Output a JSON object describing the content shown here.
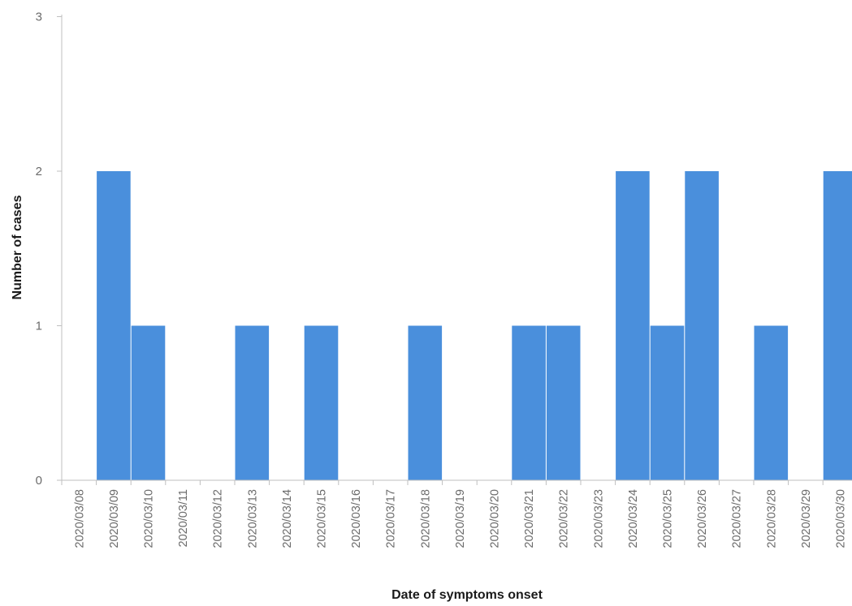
{
  "chart_data": {
    "type": "bar",
    "title": "",
    "xlabel": "Date of symptoms onset",
    "ylabel": "Number of cases",
    "ylim": [
      0,
      3
    ],
    "yticks": [
      0,
      1,
      2,
      3
    ],
    "grid": false,
    "legend": "none",
    "bar_color": "#4a8fdc",
    "categories": [
      "2020/03/08",
      "2020/03/09",
      "2020/03/10",
      "2020/03/11",
      "2020/03/12",
      "2020/03/13",
      "2020/03/14",
      "2020/03/15",
      "2020/03/16",
      "2020/03/17",
      "2020/03/18",
      "2020/03/19",
      "2020/03/20",
      "2020/03/21",
      "2020/03/22",
      "2020/03/23",
      "2020/03/24",
      "2020/03/25",
      "2020/03/26",
      "2020/03/27",
      "2020/03/28",
      "2020/03/29",
      "2020/03/30"
    ],
    "values": [
      0,
      2,
      1,
      0,
      0,
      1,
      0,
      1,
      0,
      0,
      1,
      0,
      0,
      1,
      1,
      0,
      2,
      1,
      2,
      0,
      1,
      0,
      2
    ]
  }
}
